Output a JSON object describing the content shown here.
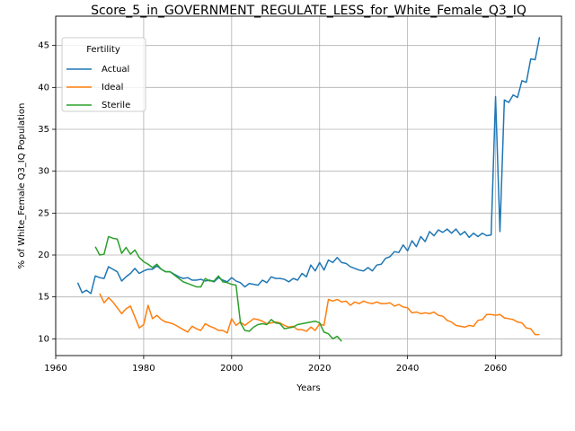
{
  "chart_data": {
    "type": "line",
    "title": "Score_5_in_GOVERNMENT_REGULATE_LESS_for_White_Female_Q3_IQ",
    "xlabel": "Years",
    "ylabel": "% of White_Female Q3_IQ Population",
    "xlim": [
      1960,
      2075
    ],
    "ylim": [
      8,
      48.5
    ],
    "xticks": [
      1960,
      1980,
      2000,
      2020,
      2040,
      2060
    ],
    "yticks": [
      10,
      15,
      20,
      25,
      30,
      35,
      40,
      45
    ],
    "grid": true,
    "legend": {
      "title": "Fertility",
      "placement": "top-left"
    },
    "series": [
      {
        "name": "Actual",
        "color": "#1f77b4",
        "points": [
          [
            1965,
            16.7
          ],
          [
            1966,
            15.5
          ],
          [
            1967,
            15.8
          ],
          [
            1968,
            15.4
          ],
          [
            1969,
            17.5
          ],
          [
            1970,
            17.3
          ],
          [
            1971,
            17.2
          ],
          [
            1972,
            18.6
          ],
          [
            1973,
            18.3
          ],
          [
            1974,
            18.0
          ],
          [
            1975,
            16.9
          ],
          [
            1976,
            17.4
          ],
          [
            1977,
            17.8
          ],
          [
            1978,
            18.4
          ],
          [
            1979,
            17.8
          ],
          [
            1980,
            18.1
          ],
          [
            1981,
            18.3
          ],
          [
            1982,
            18.3
          ],
          [
            1983,
            18.7
          ],
          [
            1984,
            18.3
          ],
          [
            1985,
            18.0
          ],
          [
            1986,
            18.0
          ],
          [
            1987,
            17.7
          ],
          [
            1988,
            17.4
          ],
          [
            1989,
            17.2
          ],
          [
            1990,
            17.3
          ],
          [
            1991,
            17.0
          ],
          [
            1992,
            17.0
          ],
          [
            1993,
            17.1
          ],
          [
            1994,
            16.9
          ],
          [
            1995,
            17.0
          ],
          [
            1996,
            16.8
          ],
          [
            1997,
            17.3
          ],
          [
            1998,
            17.0
          ],
          [
            1999,
            16.8
          ],
          [
            2000,
            17.3
          ],
          [
            2001,
            16.9
          ],
          [
            2002,
            16.7
          ],
          [
            2003,
            16.2
          ],
          [
            2004,
            16.6
          ],
          [
            2005,
            16.5
          ],
          [
            2006,
            16.4
          ],
          [
            2007,
            17.0
          ],
          [
            2008,
            16.7
          ],
          [
            2009,
            17.4
          ],
          [
            2010,
            17.2
          ],
          [
            2011,
            17.2
          ],
          [
            2012,
            17.1
          ],
          [
            2013,
            16.8
          ],
          [
            2014,
            17.2
          ],
          [
            2015,
            17.0
          ],
          [
            2016,
            17.8
          ],
          [
            2017,
            17.4
          ],
          [
            2018,
            18.8
          ],
          [
            2019,
            18.1
          ],
          [
            2020,
            19.1
          ],
          [
            2021,
            18.2
          ],
          [
            2022,
            19.4
          ],
          [
            2023,
            19.1
          ],
          [
            2024,
            19.7
          ],
          [
            2025,
            19.1
          ],
          [
            2026,
            19.0
          ],
          [
            2027,
            18.6
          ],
          [
            2028,
            18.4
          ],
          [
            2029,
            18.2
          ],
          [
            2030,
            18.1
          ],
          [
            2031,
            18.5
          ],
          [
            2032,
            18.1
          ],
          [
            2033,
            18.8
          ],
          [
            2034,
            18.9
          ],
          [
            2035,
            19.6
          ],
          [
            2036,
            19.8
          ],
          [
            2037,
            20.4
          ],
          [
            2038,
            20.3
          ],
          [
            2039,
            21.2
          ],
          [
            2040,
            20.5
          ],
          [
            2041,
            21.7
          ],
          [
            2042,
            21.0
          ],
          [
            2043,
            22.2
          ],
          [
            2044,
            21.6
          ],
          [
            2045,
            22.8
          ],
          [
            2046,
            22.3
          ],
          [
            2047,
            23.0
          ],
          [
            2048,
            22.7
          ],
          [
            2049,
            23.1
          ],
          [
            2050,
            22.6
          ],
          [
            2051,
            23.1
          ],
          [
            2052,
            22.4
          ],
          [
            2053,
            22.8
          ],
          [
            2054,
            22.1
          ],
          [
            2055,
            22.6
          ],
          [
            2056,
            22.2
          ],
          [
            2057,
            22.6
          ],
          [
            2058,
            22.3
          ],
          [
            2059,
            22.4
          ],
          [
            2060,
            38.9
          ],
          [
            2061,
            22.8
          ],
          [
            2062,
            38.5
          ],
          [
            2063,
            38.2
          ],
          [
            2064,
            39.1
          ],
          [
            2065,
            38.8
          ],
          [
            2066,
            40.8
          ],
          [
            2067,
            40.6
          ],
          [
            2068,
            43.4
          ],
          [
            2069,
            43.3
          ],
          [
            2070,
            46.0
          ]
        ]
      },
      {
        "name": "Ideal",
        "color": "#ff7f0e",
        "points": [
          [
            1970,
            15.4
          ],
          [
            1971,
            14.3
          ],
          [
            1972,
            14.9
          ],
          [
            1973,
            14.4
          ],
          [
            1974,
            13.7
          ],
          [
            1975,
            13.0
          ],
          [
            1976,
            13.6
          ],
          [
            1977,
            13.9
          ],
          [
            1978,
            12.6
          ],
          [
            1979,
            11.3
          ],
          [
            1980,
            11.7
          ],
          [
            1981,
            14.0
          ],
          [
            1982,
            12.4
          ],
          [
            1983,
            12.8
          ],
          [
            1984,
            12.3
          ],
          [
            1985,
            12.0
          ],
          [
            1986,
            11.9
          ],
          [
            1987,
            11.7
          ],
          [
            1988,
            11.4
          ],
          [
            1989,
            11.1
          ],
          [
            1990,
            10.8
          ],
          [
            1991,
            11.5
          ],
          [
            1992,
            11.2
          ],
          [
            1993,
            11.0
          ],
          [
            1994,
            11.8
          ],
          [
            1995,
            11.5
          ],
          [
            1996,
            11.3
          ],
          [
            1997,
            11.0
          ],
          [
            1998,
            11.0
          ],
          [
            1999,
            10.7
          ],
          [
            2000,
            12.4
          ],
          [
            2001,
            11.6
          ],
          [
            2002,
            12.0
          ],
          [
            2003,
            11.6
          ],
          [
            2004,
            12.0
          ],
          [
            2005,
            12.4
          ],
          [
            2006,
            12.3
          ],
          [
            2007,
            12.1
          ],
          [
            2008,
            11.8
          ],
          [
            2009,
            11.9
          ],
          [
            2010,
            12.0
          ],
          [
            2011,
            11.9
          ],
          [
            2012,
            11.6
          ],
          [
            2013,
            11.4
          ],
          [
            2014,
            11.5
          ],
          [
            2015,
            11.1
          ],
          [
            2016,
            11.1
          ],
          [
            2017,
            10.9
          ],
          [
            2018,
            11.4
          ],
          [
            2019,
            11.0
          ],
          [
            2020,
            11.8
          ],
          [
            2021,
            11.6
          ],
          [
            2022,
            14.7
          ],
          [
            2023,
            14.5
          ],
          [
            2024,
            14.7
          ],
          [
            2025,
            14.4
          ],
          [
            2026,
            14.5
          ],
          [
            2027,
            14.0
          ],
          [
            2028,
            14.4
          ],
          [
            2029,
            14.2
          ],
          [
            2030,
            14.5
          ],
          [
            2031,
            14.3
          ],
          [
            2032,
            14.2
          ],
          [
            2033,
            14.4
          ],
          [
            2034,
            14.2
          ],
          [
            2035,
            14.2
          ],
          [
            2036,
            14.3
          ],
          [
            2037,
            13.9
          ],
          [
            2038,
            14.1
          ],
          [
            2039,
            13.8
          ],
          [
            2040,
            13.7
          ],
          [
            2041,
            13.1
          ],
          [
            2042,
            13.2
          ],
          [
            2043,
            13.0
          ],
          [
            2044,
            13.1
          ],
          [
            2045,
            13.0
          ],
          [
            2046,
            13.2
          ],
          [
            2047,
            12.8
          ],
          [
            2048,
            12.7
          ],
          [
            2049,
            12.2
          ],
          [
            2050,
            12.0
          ],
          [
            2051,
            11.6
          ],
          [
            2052,
            11.5
          ],
          [
            2053,
            11.4
          ],
          [
            2054,
            11.6
          ],
          [
            2055,
            11.5
          ],
          [
            2056,
            12.2
          ],
          [
            2057,
            12.3
          ],
          [
            2058,
            12.9
          ],
          [
            2059,
            12.9
          ],
          [
            2060,
            12.8
          ],
          [
            2061,
            12.9
          ],
          [
            2062,
            12.5
          ],
          [
            2063,
            12.4
          ],
          [
            2064,
            12.3
          ],
          [
            2065,
            12.0
          ],
          [
            2066,
            11.9
          ],
          [
            2067,
            11.3
          ],
          [
            2068,
            11.2
          ],
          [
            2069,
            10.5
          ],
          [
            2070,
            10.5
          ]
        ]
      },
      {
        "name": "Sterile",
        "color": "#2ca02c",
        "points": [
          [
            1969,
            21.0
          ],
          [
            1970,
            20.0
          ],
          [
            1971,
            20.1
          ],
          [
            1972,
            22.2
          ],
          [
            1973,
            22.0
          ],
          [
            1974,
            21.9
          ],
          [
            1975,
            20.2
          ],
          [
            1976,
            20.9
          ],
          [
            1977,
            20.1
          ],
          [
            1978,
            20.6
          ],
          [
            1979,
            19.7
          ],
          [
            1980,
            19.2
          ],
          [
            1981,
            18.9
          ],
          [
            1982,
            18.5
          ],
          [
            1983,
            18.9
          ],
          [
            1984,
            18.3
          ],
          [
            1985,
            18.0
          ],
          [
            1986,
            18.0
          ],
          [
            1987,
            17.6
          ],
          [
            1988,
            17.2
          ],
          [
            1989,
            16.8
          ],
          [
            1990,
            16.6
          ],
          [
            1991,
            16.4
          ],
          [
            1992,
            16.2
          ],
          [
            1993,
            16.2
          ],
          [
            1994,
            17.2
          ],
          [
            1995,
            16.9
          ],
          [
            1996,
            16.9
          ],
          [
            1997,
            17.5
          ],
          [
            1998,
            16.8
          ],
          [
            1999,
            16.7
          ],
          [
            2000,
            16.5
          ],
          [
            2001,
            16.4
          ],
          [
            2002,
            11.9
          ],
          [
            2003,
            11.0
          ],
          [
            2004,
            10.9
          ],
          [
            2005,
            11.4
          ],
          [
            2006,
            11.7
          ],
          [
            2007,
            11.8
          ],
          [
            2008,
            11.7
          ],
          [
            2009,
            12.3
          ],
          [
            2010,
            11.9
          ],
          [
            2011,
            11.8
          ],
          [
            2012,
            11.2
          ],
          [
            2013,
            11.3
          ],
          [
            2014,
            11.4
          ],
          [
            2015,
            11.7
          ],
          [
            2016,
            11.8
          ],
          [
            2017,
            11.9
          ],
          [
            2018,
            12.0
          ],
          [
            2019,
            12.1
          ],
          [
            2020,
            11.9
          ],
          [
            2021,
            10.8
          ],
          [
            2022,
            10.6
          ],
          [
            2023,
            10.0
          ],
          [
            2024,
            10.3
          ],
          [
            2025,
            9.7
          ]
        ]
      }
    ]
  }
}
